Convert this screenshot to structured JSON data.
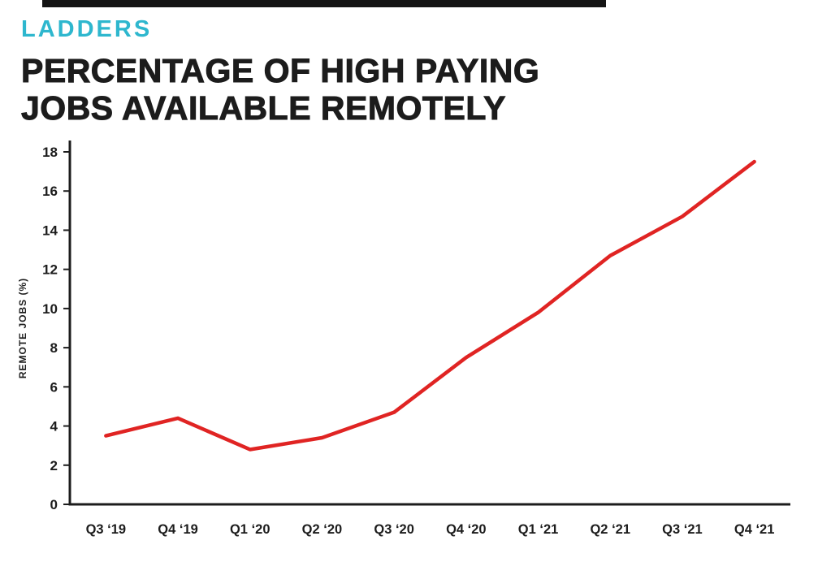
{
  "brand": {
    "name": "LADDERS",
    "color": "#2eb7ce"
  },
  "title_line1": "PERCENTAGE OF HIGH PAYING",
  "title_line2": "JOBS AVAILABLE REMOTELY",
  "text_color": "#1c1c1c",
  "chart_data": {
    "type": "line",
    "title": "PERCENTAGE OF HIGH PAYING JOBS AVAILABLE REMOTELY",
    "categories": [
      "Q3 ‘19",
      "Q4 ‘19",
      "Q1 ‘20",
      "Q2 ‘20",
      "Q3 ‘20",
      "Q4 ‘20",
      "Q1 ‘21",
      "Q2 ‘21",
      "Q3 ‘21",
      "Q4 ‘21"
    ],
    "values": [
      3.5,
      4.4,
      2.8,
      3.4,
      4.7,
      7.5,
      9.8,
      12.7,
      14.7,
      17.5
    ],
    "xlabel": "",
    "ylabel": "REMOTE JOBS (%)",
    "ylim": [
      0,
      18
    ],
    "ytick_step": 2,
    "yticks": [
      0,
      2,
      4,
      6,
      8,
      10,
      12,
      14,
      16,
      18
    ],
    "grid": false,
    "legend": "none",
    "line_color": "#e02423",
    "axis_color": "#1c1c1c"
  }
}
